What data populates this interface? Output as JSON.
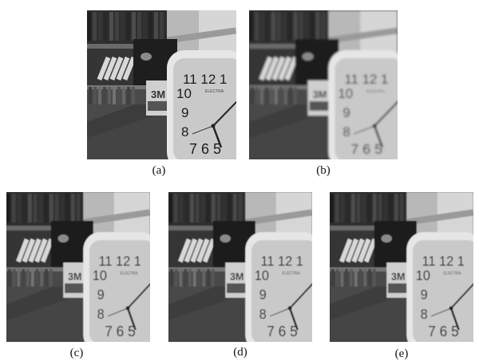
{
  "figure": {
    "panels": [
      {
        "id": "pa",
        "caption": "(a)",
        "variant": "sharp"
      },
      {
        "id": "pb",
        "caption": "(b)",
        "variant": "blurred"
      },
      {
        "id": "pc",
        "caption": "(c)",
        "variant": "restored"
      },
      {
        "id": "pd",
        "caption": "(d)",
        "variant": "restored"
      },
      {
        "id": "pe",
        "caption": "(e)",
        "variant": "restored"
      }
    ],
    "clock": {
      "numerals_top": "11 12 1",
      "numerals_left": [
        "10",
        "9",
        "8"
      ],
      "numerals_bottom": "7 6 5",
      "brand": "ELECTRA"
    },
    "box_label": "3M"
  }
}
